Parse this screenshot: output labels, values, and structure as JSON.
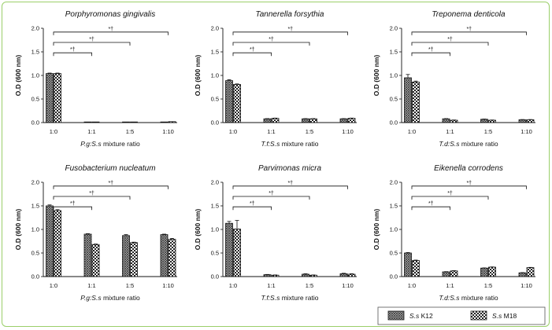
{
  "chart_data": [
    {
      "type": "bar",
      "title": "Porphyromonas gingivalis",
      "xlabel_prefix": "P.g:S.s",
      "xlabel_suffix": " mixture ratio",
      "ylabel": "O.D (600 nm)",
      "ylim": [
        0,
        2.0
      ],
      "yticks": [
        "0.0",
        "0.5",
        "1.0",
        "1.5",
        "2.0"
      ],
      "categories": [
        "1:0",
        "1:1",
        "1:5",
        "1:10"
      ],
      "series": [
        {
          "name": "S.s K12",
          "values": [
            1.04,
            0.01,
            0.01,
            0.01
          ],
          "errors": [
            0.01,
            0.0,
            0.0,
            0.0
          ]
        },
        {
          "name": "S.s M18",
          "values": [
            1.04,
            0.01,
            0.01,
            0.02
          ],
          "errors": [
            0.01,
            0.0,
            0.0,
            0.0
          ]
        }
      ],
      "significance": [
        {
          "from": "1:0",
          "to": "1:1",
          "label": "*†"
        },
        {
          "from": "1:0",
          "to": "1:5",
          "label": "*†"
        },
        {
          "from": "1:0",
          "to": "1:10",
          "label": "*†"
        }
      ]
    },
    {
      "type": "bar",
      "title": "Tannerella forsythia",
      "xlabel_prefix": "T.f:S.s",
      "xlabel_suffix": " mixture ratio",
      "ylabel": "O.D (600 nm)",
      "ylim": [
        0,
        2.0
      ],
      "yticks": [
        "0.0",
        "0.5",
        "1.0",
        "1.5",
        "2.0"
      ],
      "categories": [
        "1:0",
        "1:1",
        "1:5",
        "1:10"
      ],
      "series": [
        {
          "name": "S.s K12",
          "values": [
            0.89,
            0.08,
            0.08,
            0.08
          ],
          "errors": [
            0.02,
            0.005,
            0.005,
            0.005
          ]
        },
        {
          "name": "S.s M18",
          "values": [
            0.81,
            0.09,
            0.08,
            0.09
          ],
          "errors": [
            0.01,
            0.005,
            0.005,
            0.005
          ]
        }
      ],
      "significance": [
        {
          "from": "1:0",
          "to": "1:1",
          "label": "*†"
        },
        {
          "from": "1:0",
          "to": "1:5",
          "label": "*†"
        },
        {
          "from": "1:0",
          "to": "1:10",
          "label": "*†"
        }
      ]
    },
    {
      "type": "bar",
      "title": "Treponema denticola",
      "xlabel_prefix": "T.d:S.s",
      "xlabel_suffix": " mixture ratio",
      "ylabel": "O.D (600 nm)",
      "ylim": [
        0,
        2.0
      ],
      "yticks": [
        "0.0",
        "0.5",
        "1.0",
        "1.5",
        "2.0"
      ],
      "categories": [
        "1:0",
        "1:1",
        "1:5",
        "1:10"
      ],
      "series": [
        {
          "name": "S.s K12",
          "values": [
            0.95,
            0.08,
            0.07,
            0.06
          ],
          "errors": [
            0.07,
            0.005,
            0.005,
            0.005
          ]
        },
        {
          "name": "S.s M18",
          "values": [
            0.86,
            0.05,
            0.05,
            0.06
          ],
          "errors": [
            0.02,
            0.005,
            0.005,
            0.005
          ]
        }
      ],
      "significance": [
        {
          "from": "1:0",
          "to": "1:1",
          "label": "*†"
        },
        {
          "from": "1:0",
          "to": "1:5",
          "label": "*†"
        },
        {
          "from": "1:0",
          "to": "1:10",
          "label": "*†"
        }
      ]
    },
    {
      "type": "bar",
      "title": "Fusobacterium nucleatum",
      "xlabel_prefix": "P.g:S.s",
      "xlabel_suffix": " mixture ratio",
      "ylabel": "O.D (600 nm)",
      "ylim": [
        0,
        2.0
      ],
      "yticks": [
        "0.0",
        "0.5",
        "1.0",
        "1.5",
        "2.0"
      ],
      "categories": [
        "1:0",
        "1:1",
        "1:5",
        "1:10"
      ],
      "series": [
        {
          "name": "S.s K12",
          "values": [
            1.5,
            0.9,
            0.87,
            0.89
          ],
          "errors": [
            0.02,
            0.01,
            0.02,
            0.01
          ]
        },
        {
          "name": "S.s M18",
          "values": [
            1.4,
            0.68,
            0.72,
            0.79
          ],
          "errors": [
            0.02,
            0.01,
            0.01,
            0.02
          ]
        }
      ],
      "significance": [
        {
          "from": "1:0",
          "to": "1:1",
          "label": "*†"
        },
        {
          "from": "1:0",
          "to": "1:5",
          "label": "*†"
        },
        {
          "from": "1:0",
          "to": "1:10",
          "label": "*†"
        }
      ]
    },
    {
      "type": "bar",
      "title": "Parvimonas micra",
      "xlabel_prefix": "T.f:S.s",
      "xlabel_suffix": " mixture ratio",
      "ylabel": "O.D (600 nm)",
      "ylim": [
        0,
        2.0
      ],
      "yticks": [
        "0.0",
        "0.5",
        "1.0",
        "1.5",
        "2.0"
      ],
      "categories": [
        "1:0",
        "1:1",
        "1:5",
        "1:10"
      ],
      "series": [
        {
          "name": "S.s K12",
          "values": [
            1.13,
            0.04,
            0.05,
            0.06
          ],
          "errors": [
            0.04,
            0.005,
            0.01,
            0.01
          ]
        },
        {
          "name": "S.s M18",
          "values": [
            1.01,
            0.03,
            0.03,
            0.05
          ],
          "errors": [
            0.18,
            0.005,
            0.005,
            0.01
          ]
        }
      ],
      "significance": [
        {
          "from": "1:0",
          "to": "1:1",
          "label": "*†"
        },
        {
          "from": "1:0",
          "to": "1:5",
          "label": "*†"
        },
        {
          "from": "1:0",
          "to": "1:10",
          "label": "*†"
        }
      ]
    },
    {
      "type": "bar",
      "title": "Eikenella corrodens",
      "xlabel_prefix": "T.d:S.s",
      "xlabel_suffix": " mixture ratio",
      "ylabel": "O.D (600 nm)",
      "ylim": [
        0,
        2.0
      ],
      "yticks": [
        "0.0",
        "0.5",
        "1.0",
        "1.5",
        "2.0"
      ],
      "categories": [
        "1:0",
        "1:1",
        "1:5",
        "1:10"
      ],
      "series": [
        {
          "name": "S.s K12",
          "values": [
            0.5,
            0.1,
            0.18,
            0.08
          ],
          "errors": [
            0.01,
            0.005,
            0.005,
            0.005
          ]
        },
        {
          "name": "S.s M18",
          "values": [
            0.34,
            0.12,
            0.2,
            0.19
          ],
          "errors": [
            0.01,
            0.005,
            0.005,
            0.005
          ]
        }
      ],
      "significance": [
        {
          "from": "1:0",
          "to": "1:1",
          "label": "*†"
        },
        {
          "from": "1:0",
          "to": "1:5",
          "label": "*†"
        },
        {
          "from": "1:0",
          "to": "1:10",
          "label": "*†"
        }
      ]
    }
  ],
  "legend": {
    "placement": "bottom-right",
    "items": [
      {
        "italic": "S.s",
        "rest": " K12",
        "pattern": "grid"
      },
      {
        "italic": "S.s",
        "rest": " M18",
        "pattern": "checker"
      }
    ]
  }
}
